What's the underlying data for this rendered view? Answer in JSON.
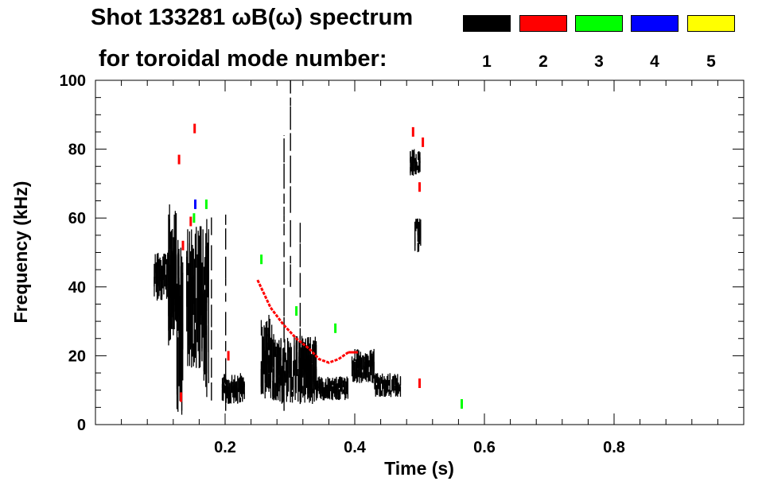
{
  "header": {
    "title_line1": "Shot 133281 ωB(ω) spectrum",
    "title_line2": "for toroidal mode number:"
  },
  "legend": {
    "items": [
      {
        "label": "1",
        "color": "#000000"
      },
      {
        "label": "2",
        "color": "#ff0000"
      },
      {
        "label": "3",
        "color": "#00ff00"
      },
      {
        "label": "4",
        "color": "#0000ff"
      },
      {
        "label": "5",
        "color": "#ffff00"
      }
    ],
    "placement": "top-right"
  },
  "chart_data": {
    "type": "heatmap",
    "title": "Shot 133281 ωB(ω) spectrum",
    "subtitle": "for toroidal mode number:",
    "xlabel": "Time (s)",
    "ylabel": "Frequency (kHz)",
    "xlim": [
      0.0,
      1.0
    ],
    "ylim": [
      0,
      100
    ],
    "x_ticks": [
      0.2,
      0.4,
      0.6,
      0.8
    ],
    "x_tick_labels": [
      "0.2",
      "0.4",
      "0.6",
      "0.8"
    ],
    "y_ticks": [
      0,
      20,
      40,
      60,
      80,
      100
    ],
    "y_tick_labels": [
      "0",
      "20",
      "40",
      "60",
      "80",
      "100"
    ],
    "grid": false,
    "series": [
      {
        "name": "1",
        "color": "#000000",
        "regions": [
          {
            "t": [
              0.09,
              0.125
            ],
            "f": [
              36,
              50
            ]
          },
          {
            "t": [
              0.112,
              0.125
            ],
            "f": [
              22,
              64
            ]
          },
          {
            "t": [
              0.125,
              0.135
            ],
            "f": [
              2,
              54
            ]
          },
          {
            "t": [
              0.14,
              0.165
            ],
            "f": [
              16,
              58
            ]
          },
          {
            "t": [
              0.165,
              0.175
            ],
            "f": [
              8,
              60
            ]
          },
          {
            "t": [
              0.195,
              0.23
            ],
            "f": [
              6,
              15
            ]
          },
          {
            "t": [
              0.255,
              0.275
            ],
            "f": [
              7,
              32
            ]
          },
          {
            "t": [
              0.275,
              0.34
            ],
            "f": [
              6,
              26
            ]
          },
          {
            "t": [
              0.34,
              0.39
            ],
            "f": [
              7,
              14
            ]
          },
          {
            "t": [
              0.395,
              0.43
            ],
            "f": [
              12,
              22
            ]
          },
          {
            "t": [
              0.43,
              0.47
            ],
            "f": [
              8,
              15
            ]
          },
          {
            "t": [
              0.485,
              0.5
            ],
            "f": [
              72,
              80
            ]
          },
          {
            "t": [
              0.492,
              0.502
            ],
            "f": [
              50,
              60
            ]
          }
        ],
        "lines": [
          {
            "t": 0.178,
            "f": [
              7,
              62
            ]
          },
          {
            "t": 0.2,
            "f": [
              4,
              61
            ]
          },
          {
            "t": 0.29,
            "f": [
              4,
              84
            ]
          },
          {
            "t": 0.3,
            "f": [
              40,
              100
            ]
          },
          {
            "t": 0.315,
            "f": [
              6,
              60
            ]
          }
        ]
      },
      {
        "name": "2",
        "color": "#ff0000",
        "chirp": {
          "t": [
            0.25,
            0.27,
            0.29,
            0.31,
            0.33,
            0.345,
            0.36,
            0.375,
            0.39
          ],
          "f": [
            42,
            34,
            29,
            25,
            22,
            19,
            18,
            19,
            21
          ]
        },
        "line": {
          "t": [
            0.39,
            0.405
          ],
          "f": [
            21,
            21
          ]
        },
        "spots": [
          {
            "t": 0.129,
            "f": 77
          },
          {
            "t": 0.153,
            "f": 86
          },
          {
            "t": 0.132,
            "f": 8
          },
          {
            "t": 0.135,
            "f": 52
          },
          {
            "t": 0.147,
            "f": 59
          },
          {
            "t": 0.205,
            "f": 20
          },
          {
            "t": 0.49,
            "f": 85
          },
          {
            "t": 0.5,
            "f": 69
          },
          {
            "t": 0.505,
            "f": 82
          },
          {
            "t": 0.5,
            "f": 12
          }
        ]
      },
      {
        "name": "3",
        "color": "#00ff00",
        "spots": [
          {
            "t": 0.152,
            "f": 60
          },
          {
            "t": 0.171,
            "f": 64
          },
          {
            "t": 0.256,
            "f": 48
          },
          {
            "t": 0.31,
            "f": 33
          },
          {
            "t": 0.37,
            "f": 28
          },
          {
            "t": 0.565,
            "f": 6
          }
        ]
      },
      {
        "name": "4",
        "color": "#0000ff",
        "spots": [
          {
            "t": 0.154,
            "f": 64
          }
        ]
      },
      {
        "name": "5",
        "color": "#ffff00",
        "spots": []
      }
    ]
  }
}
